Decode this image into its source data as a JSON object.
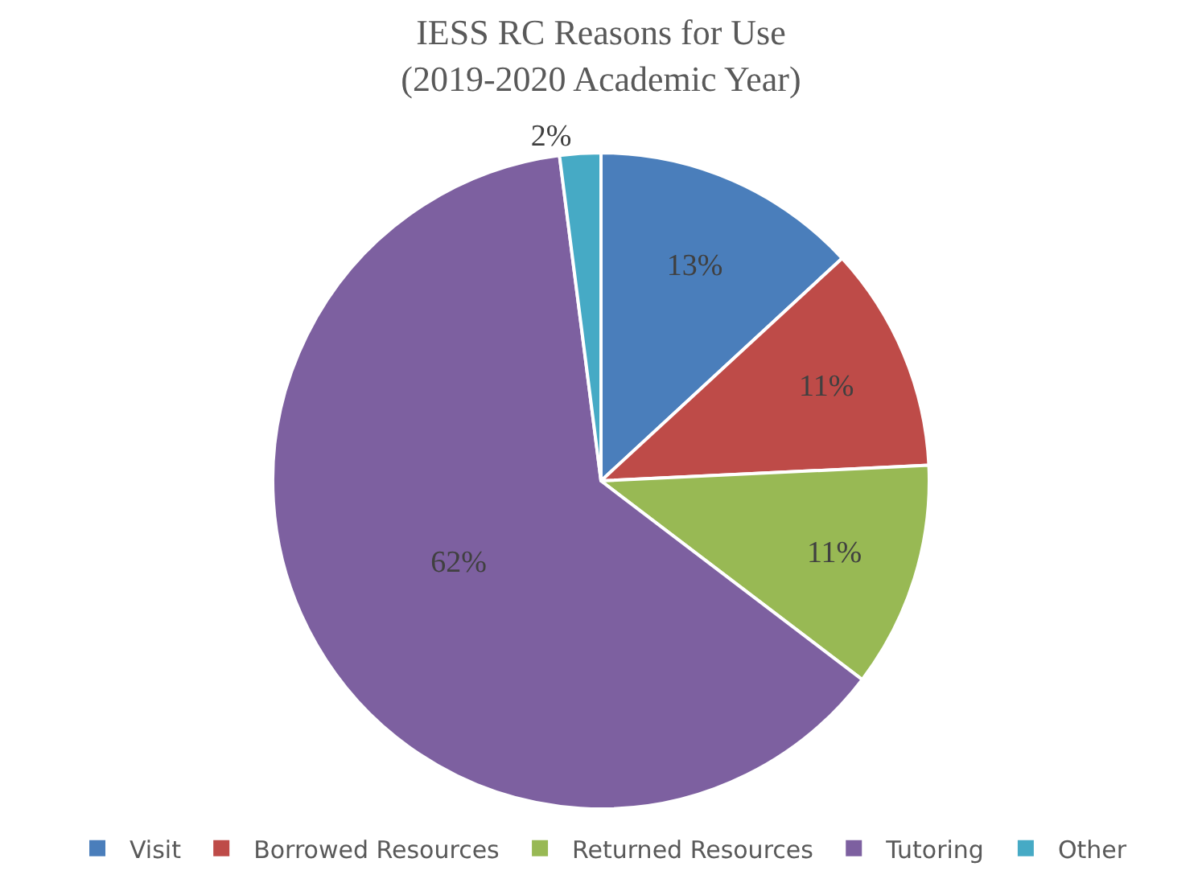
{
  "chart_data": {
    "type": "pie",
    "title": "IESS RC Reasons for Use\n(2019-2020 Academic Year)",
    "categories": [
      "Visit",
      "Borrowed Resources",
      "Returned Resources",
      "Tutoring",
      "Other"
    ],
    "values": [
      13,
      11,
      11,
      62,
      2
    ],
    "value_labels": [
      "13%",
      "11%",
      "11%",
      "62%",
      "2%"
    ],
    "colors": [
      "#4a7ebb",
      "#be4b48",
      "#98b954",
      "#7d60a0",
      "#46aac5"
    ],
    "legend": "bottom"
  }
}
